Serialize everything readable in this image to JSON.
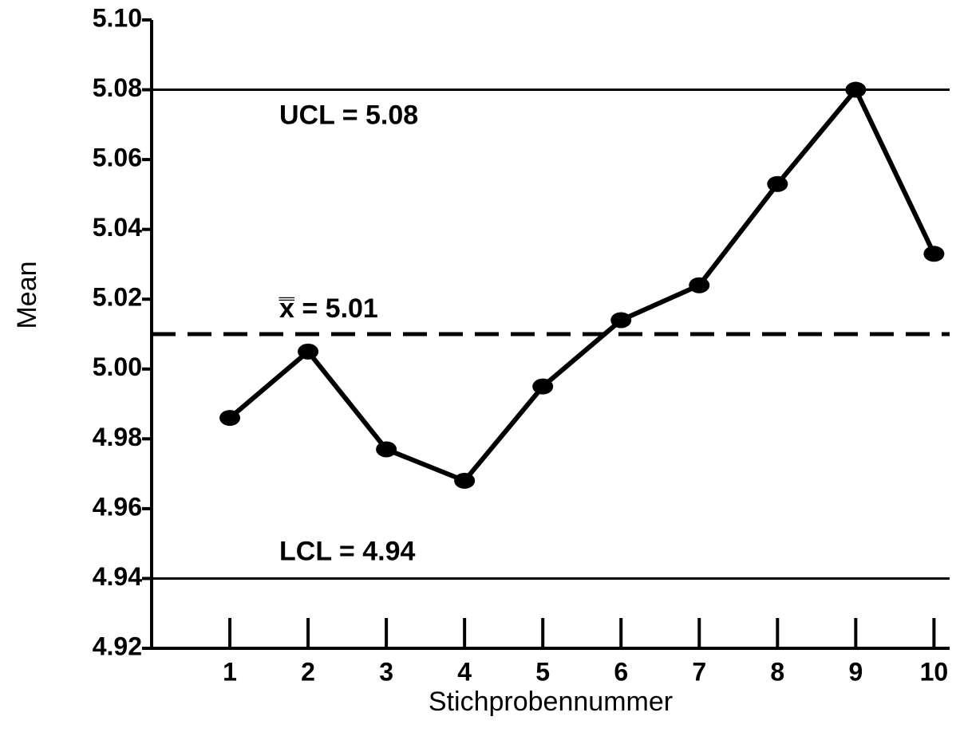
{
  "chart_data": {
    "type": "line",
    "xlabel": "Stichprobennummer",
    "ylabel": "Mean",
    "x": [
      1,
      2,
      3,
      4,
      5,
      6,
      7,
      8,
      9,
      10
    ],
    "values": [
      4.986,
      5.005,
      4.977,
      4.968,
      4.995,
      5.014,
      5.024,
      5.053,
      5.08,
      5.033
    ],
    "color": "#000000",
    "xlim": [
      0,
      10.2
    ],
    "xticks": [
      1,
      2,
      3,
      4,
      5,
      6,
      7,
      8,
      9,
      10
    ],
    "ylim": [
      4.92,
      5.1
    ],
    "yticks": [
      4.92,
      4.94,
      4.96,
      4.98,
      {
        "value": 5.0,
        "label": "5.00"
      },
      5.02,
      5.04,
      5.06,
      5.08,
      {
        "value": 5.1,
        "label": "5.10"
      }
    ],
    "reference_lines": [
      {
        "label": "UCL = 5.08",
        "value": 5.08,
        "style": "solid"
      },
      {
        "label": "x̿ = 5.01",
        "value": 5.01,
        "style": "dashed"
      },
      {
        "label": "LCL = 4.94",
        "value": 4.94,
        "style": "solid"
      }
    ]
  }
}
